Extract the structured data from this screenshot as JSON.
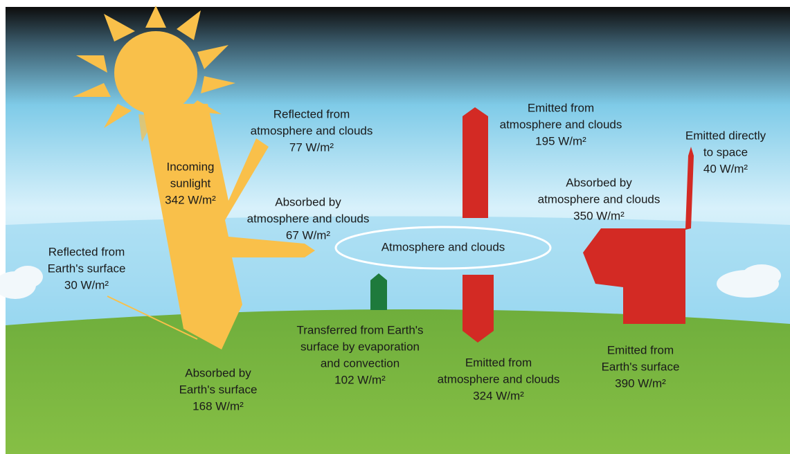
{
  "atmosphere_label": "Atmosphere and clouds",
  "labels": {
    "incoming": [
      "Incoming",
      "sunlight",
      "342 W/m²"
    ],
    "reflected_atmosphere": [
      "Reflected from",
      "atmosphere and clouds",
      "77 W/m²"
    ],
    "absorbed_atmosphere_solar": [
      "Absorbed by",
      "atmosphere and clouds",
      "67 W/m²"
    ],
    "reflected_surface": [
      "Reflected from",
      "Earth's surface",
      "30 W/m²"
    ],
    "absorbed_surface": [
      "Absorbed by",
      "Earth's surface",
      "168 W/m²"
    ],
    "transferred": [
      "Transferred from Earth's",
      "surface by evaporation",
      "and convection",
      "102 W/m²"
    ],
    "emitted_atmosphere_down": [
      "Emitted from",
      "atmosphere and clouds",
      "324 W/m²"
    ],
    "emitted_atmosphere_up": [
      "Emitted from",
      "atmosphere and clouds",
      "195 W/m²"
    ],
    "emitted_direct": [
      "Emitted directly",
      "to space",
      "40 W/m²"
    ],
    "absorbed_atmosphere_ir": [
      "Absorbed by",
      "atmosphere and clouds",
      "350 W/m²"
    ],
    "emitted_surface": [
      "Emitted from",
      "Earth's surface",
      "390 W/m²"
    ]
  }
}
